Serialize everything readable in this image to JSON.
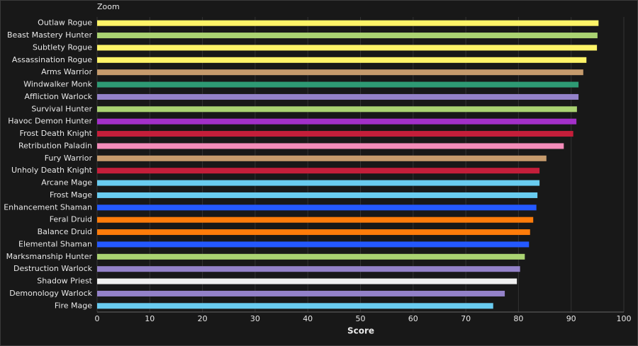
{
  "toolbar": {
    "label": "Zoom"
  },
  "chart_data": {
    "type": "hbar",
    "x_label": "Score",
    "categories": [
      "Outlaw Rogue",
      "Beast Mastery Hunter",
      "Subtlety Rogue",
      "Assassination Rogue",
      "Arms Warrior",
      "Windwalker Monk",
      "Affliction Warlock",
      "Survival Hunter",
      "Havoc Demon Hunter",
      "Frost Death Knight",
      "Retribution Paladin",
      "Fury Warrior",
      "Unholy Death Knight",
      "Arcane Mage",
      "Frost Mage",
      "Enhancement Shaman",
      "Feral Druid",
      "Balance Druid",
      "Elemental Shaman",
      "Marksmanship Hunter",
      "Destruction Warlock",
      "Shadow Priest",
      "Demonology Warlock",
      "Fire Mage"
    ],
    "values": [
      95.2,
      95.0,
      94.9,
      92.9,
      92.3,
      91.4,
      91.4,
      91.1,
      91.0,
      90.4,
      88.6,
      85.3,
      84.0,
      84.0,
      83.6,
      83.4,
      82.8,
      82.2,
      82.0,
      81.2,
      80.3,
      79.7,
      77.4,
      75.2
    ],
    "colors": [
      "#fff468",
      "#aad372",
      "#fff468",
      "#fff468",
      "#c69b6d",
      "#2e9a74",
      "#9482c9",
      "#aad372",
      "#a330c9",
      "#c41e3a",
      "#f48cba",
      "#c69b6d",
      "#c41e3a",
      "#69ccf0",
      "#69ccf0",
      "#2459ff",
      "#ff7c0a",
      "#ff7c0a",
      "#2459ff",
      "#aad372",
      "#9482c9",
      "#f0f0f0",
      "#9482c9",
      "#69ccf0"
    ],
    "xlim": [
      0,
      100
    ],
    "xticks": [
      0,
      10,
      20,
      30,
      40,
      50,
      60,
      70,
      80,
      90,
      100
    ],
    "grid": true
  }
}
